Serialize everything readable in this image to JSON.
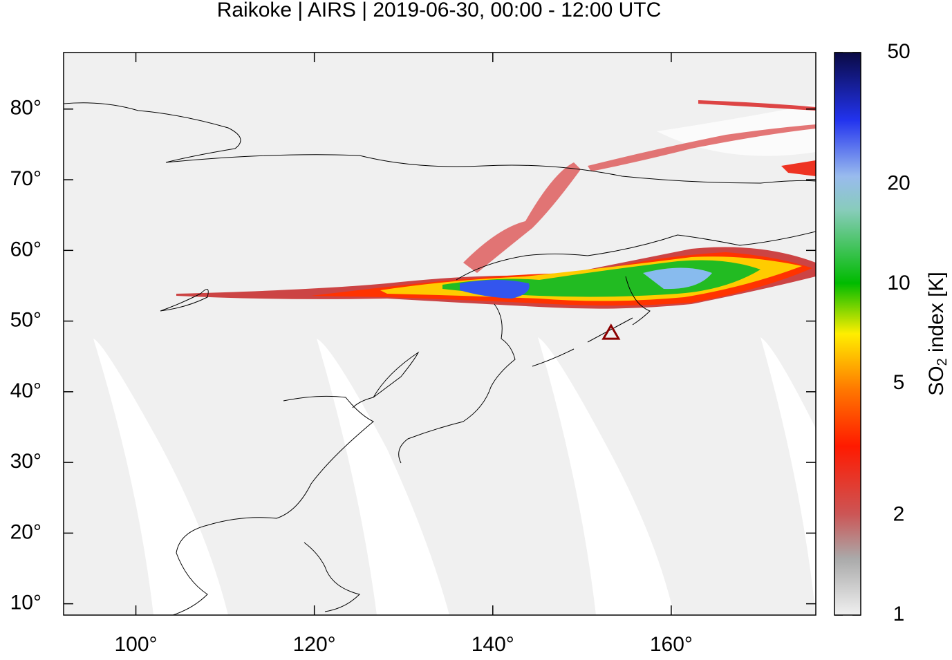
{
  "title": "Raikoke | AIRS | 2019-06-30, 00:00 - 12:00 UTC",
  "map": {
    "xlim": [
      91.9,
      176.2
    ],
    "ylim": [
      8.4,
      88
    ],
    "xticks": [
      {
        "value": 100,
        "label": "100°"
      },
      {
        "value": 120,
        "label": "120°"
      },
      {
        "value": 140,
        "label": "140°"
      },
      {
        "value": 160,
        "label": "160°"
      }
    ],
    "yticks": [
      {
        "value": 10,
        "label": "10°"
      },
      {
        "value": 20,
        "label": "20°"
      },
      {
        "value": 30,
        "label": "30°"
      },
      {
        "value": 40,
        "label": "40°"
      },
      {
        "value": 50,
        "label": "50°"
      },
      {
        "value": 60,
        "label": "60°"
      },
      {
        "value": 70,
        "label": "70°"
      },
      {
        "value": 80,
        "label": "80°"
      }
    ],
    "volcano": {
      "lon": 153.25,
      "lat": 48.29,
      "color": "#8b0000"
    }
  },
  "colorbar": {
    "label": [
      "SO",
      "2",
      " index [K]"
    ],
    "lim": [
      1,
      50
    ],
    "log": true,
    "ticks": [
      1,
      2,
      5,
      10,
      20,
      50
    ]
  }
}
